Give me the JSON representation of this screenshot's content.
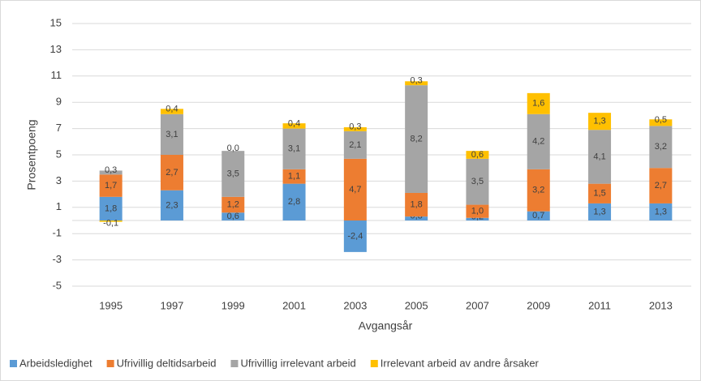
{
  "chart_data": {
    "type": "stacked-bar",
    "categories": [
      "1995",
      "1997",
      "1999",
      "2001",
      "2003",
      "2005",
      "2007",
      "2009",
      "2011",
      "2013"
    ],
    "y_label": "Prosentpoeng",
    "x_label": "Avgangsår",
    "ylim": [
      -5,
      15
    ],
    "yticks": [
      -5,
      -3,
      -1,
      1,
      3,
      5,
      7,
      9,
      11,
      13,
      15
    ],
    "grid": true,
    "legend": "bottom",
    "series": [
      {
        "name": "Arbeidsledighet",
        "color": "#5b9bd5",
        "values": [
          1.8,
          2.3,
          0.6,
          2.8,
          -2.4,
          0.3,
          0.2,
          0.7,
          1.3,
          1.3
        ],
        "value_labels": [
          "1,8",
          "2,3",
          "0,6",
          "2,8",
          "-2,4",
          "0,3",
          "0,2",
          "0,7",
          "1,3",
          "1,3"
        ]
      },
      {
        "name": "Ufrivillig deltidsarbeid",
        "color": "#ed7d31",
        "values": [
          1.7,
          2.7,
          1.2,
          1.1,
          4.7,
          1.8,
          1.0,
          3.2,
          1.5,
          2.7
        ],
        "value_labels": [
          "1,7",
          "2,7",
          "1,2",
          "1,1",
          "4,7",
          "1,8",
          "1,0",
          "3,2",
          "1,5",
          "2,7"
        ]
      },
      {
        "name": "Ufrivillig irrelevant arbeid",
        "color": "#a5a5a5",
        "values": [
          0.3,
          3.1,
          3.5,
          3.1,
          2.1,
          8.2,
          3.5,
          4.2,
          4.1,
          3.2
        ],
        "value_labels": [
          "0,3",
          "3,1",
          "3,5",
          "3,1",
          "2,1",
          "8,2",
          "3,5",
          "4,2",
          "4,1",
          "3,2"
        ]
      },
      {
        "name": "Irrelevant arbeid av andre årsaker",
        "color": "#ffc000",
        "values": [
          -0.1,
          0.4,
          0.0,
          0.4,
          0.3,
          0.3,
          0.6,
          1.6,
          1.3,
          0.5
        ],
        "value_labels": [
          "-0,1",
          "0,4",
          "0,0",
          "0,4",
          "0,3",
          "0,3",
          "0,6",
          "1,6",
          "1,3",
          "0,5"
        ]
      }
    ]
  }
}
